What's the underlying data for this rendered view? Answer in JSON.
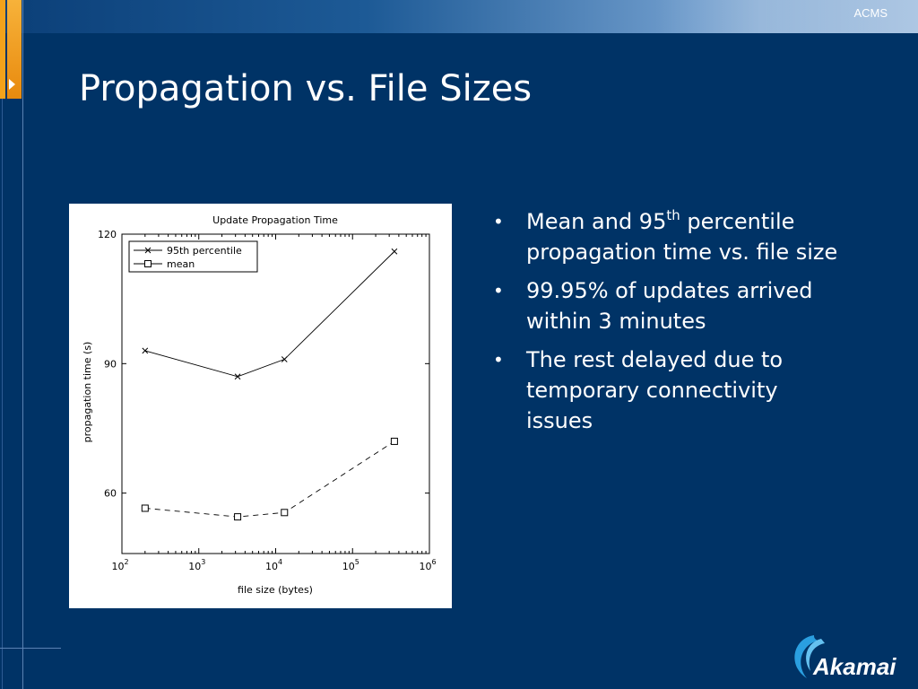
{
  "header": {
    "tag": "ACMS"
  },
  "slide": {
    "title": "Propagation vs. File Sizes"
  },
  "bullets": [
    {
      "text": "Mean and 95",
      "sup": "th",
      "tail": " percentile propagation time vs. file size"
    },
    {
      "text": "99.95% of updates arrived within 3 minutes"
    },
    {
      "text": "The rest delayed due to temporary connectivity issues"
    }
  ],
  "logo": {
    "text": "Akamai"
  },
  "chart_data": {
    "type": "line",
    "title": "Update Propagation Time",
    "xlabel": "file size (bytes)",
    "ylabel": "propagation time (s)",
    "xscale": "log",
    "xlim": [
      100,
      1000000
    ],
    "ylim": [
      46,
      120
    ],
    "x_ticks": [
      {
        "base": "10",
        "exp": "2"
      },
      {
        "base": "10",
        "exp": "3"
      },
      {
        "base": "10",
        "exp": "4"
      },
      {
        "base": "10",
        "exp": "5"
      },
      {
        "base": "10",
        "exp": "6"
      }
    ],
    "y_ticks": [
      "60",
      "90",
      "120"
    ],
    "y_tick_values": [
      60,
      90,
      120
    ],
    "legend_position": "top-left",
    "series": [
      {
        "name": "95th percentile",
        "marker": "x",
        "style": "solid",
        "x": [
          200,
          3200,
          13000,
          350000
        ],
        "y": [
          93,
          87,
          91,
          116
        ]
      },
      {
        "name": "mean",
        "marker": "square",
        "style": "dashed",
        "x": [
          200,
          3200,
          13000,
          350000
        ],
        "y": [
          56.5,
          54.5,
          55.5,
          72
        ]
      }
    ],
    "grid": false,
    "colors": {
      "line": "#000000",
      "background": "#ffffff"
    }
  },
  "colors": {
    "background": "#003366",
    "accent": "#f3a21b",
    "text": "#ffffff"
  }
}
